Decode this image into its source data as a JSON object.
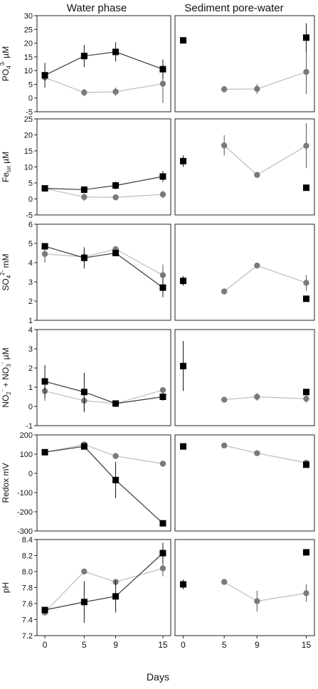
{
  "column_titles": [
    "Water phase",
    "Sediment pore-water"
  ],
  "x_axis": {
    "label": "Days",
    "ticks": [
      0,
      5,
      9,
      15
    ],
    "xlim": [
      -1,
      16
    ]
  },
  "chart_data": [
    {
      "type": "scatter",
      "ylabel": {
        "base": "PO",
        "sub": "4",
        "sup": "3-",
        "tail": " µM"
      },
      "ylim": [
        -5,
        30
      ],
      "yticks": [
        -5,
        0,
        5,
        10,
        15,
        20,
        25,
        30
      ],
      "panels": [
        {
          "column": "Water phase",
          "x": [
            0,
            5,
            9,
            15
          ],
          "series": [
            {
              "marker": "circle",
              "values": [
                7.5,
                2.0,
                2.3,
                5.2
              ],
              "err": [
                0.8,
                1.3,
                1.5,
                7.0
              ]
            },
            {
              "marker": "square",
              "values": [
                8.3,
                15.3,
                16.8,
                10.5
              ],
              "err": [
                4.5,
                4.0,
                3.5,
                3.5
              ]
            }
          ]
        },
        {
          "column": "Sediment pore-water",
          "series": [
            {
              "marker": "circle",
              "x": [
                5,
                9,
                15
              ],
              "values": [
                3.2,
                3.3,
                9.5
              ],
              "err": [
                1.2,
                1.8,
                8.0
              ]
            },
            {
              "marker": "square",
              "x": [
                0,
                15
              ],
              "values": [
                21.0,
                22.0
              ],
              "err": [
                0.8,
                5.2
              ]
            }
          ]
        }
      ]
    },
    {
      "type": "scatter",
      "ylabel": {
        "base": "Fe",
        "sub": "tot",
        "sup": "",
        "tail": " µM"
      },
      "ylim": [
        -5,
        25
      ],
      "yticks": [
        -5,
        0,
        5,
        10,
        15,
        20,
        25
      ],
      "panels": [
        {
          "column": "Water phase",
          "x": [
            0,
            5,
            9,
            15
          ],
          "series": [
            {
              "marker": "circle",
              "values": [
                3.3,
                0.6,
                0.5,
                1.4
              ],
              "err": [
                0.5,
                1.2,
                0.5,
                1.2
              ]
            },
            {
              "marker": "square",
              "values": [
                3.3,
                2.9,
                4.2,
                7.0
              ],
              "err": [
                0.5,
                0.4,
                1.2,
                1.7
              ]
            }
          ]
        },
        {
          "column": "Sediment pore-water",
          "series": [
            {
              "marker": "circle",
              "x": [
                5,
                9,
                15
              ],
              "values": [
                16.7,
                7.5,
                16.6
              ],
              "err": [
                3.2,
                0.4,
                7.0
              ]
            },
            {
              "marker": "square",
              "x": [
                0,
                15
              ],
              "values": [
                11.8,
                3.5
              ],
              "err": [
                1.8,
                0.4
              ]
            }
          ]
        }
      ]
    },
    {
      "type": "scatter",
      "ylabel": {
        "base": "SO",
        "sub": "4",
        "sup": "2-",
        "tail": " mM"
      },
      "ylim": [
        1,
        6
      ],
      "yticks": [
        1,
        2,
        3,
        4,
        5,
        6
      ],
      "panels": [
        {
          "column": "Water phase",
          "x": [
            0,
            5,
            9,
            15
          ],
          "series": [
            {
              "marker": "circle",
              "values": [
                4.45,
                4.3,
                4.7,
                3.35
              ],
              "err": [
                0.45,
                0.3,
                0.1,
                0.55
              ]
            },
            {
              "marker": "square",
              "values": [
                4.85,
                4.25,
                4.5,
                2.7
              ],
              "err": [
                0.15,
                0.55,
                0.1,
                0.5
              ]
            }
          ]
        },
        {
          "column": "Sediment pore-water",
          "series": [
            {
              "marker": "circle",
              "x": [
                5,
                9,
                15
              ],
              "values": [
                2.5,
                3.85,
                2.95
              ],
              "err": [
                0.15,
                0.08,
                0.4
              ]
            },
            {
              "marker": "square",
              "x": [
                0,
                15
              ],
              "values": [
                3.05,
                2.12
              ],
              "err": [
                0.25,
                0.05
              ]
            }
          ]
        }
      ]
    },
    {
      "type": "scatter",
      "ylabel": {
        "base": "NO",
        "sub": "2",
        "sup": "-",
        "tail": " + NO",
        "sub2": "3",
        "sup2": "-",
        "tail2": " µM"
      },
      "ylim": [
        -1,
        4
      ],
      "yticks": [
        -1,
        0,
        1,
        2,
        3,
        4
      ],
      "panels": [
        {
          "column": "Water phase",
          "x": [
            0,
            5,
            9,
            15
          ],
          "series": [
            {
              "marker": "circle",
              "values": [
                0.8,
                0.3,
                0.15,
                0.85
              ],
              "err": [
                0.5,
                0.6,
                0.05,
                0.15
              ]
            },
            {
              "marker": "square",
              "values": [
                1.3,
                0.75,
                0.15,
                0.5
              ],
              "err": [
                0.85,
                1.0,
                0.05,
                0.2
              ]
            }
          ]
        },
        {
          "column": "Sediment pore-water",
          "series": [
            {
              "marker": "circle",
              "x": [
                5,
                9,
                15
              ],
              "values": [
                0.35,
                0.5,
                0.4
              ],
              "err": [
                0.05,
                0.2,
                0.2
              ]
            },
            {
              "marker": "square",
              "x": [
                0,
                15
              ],
              "values": [
                2.1,
                0.75
              ],
              "err": [
                1.3,
                0.05
              ]
            }
          ]
        }
      ]
    },
    {
      "type": "scatter",
      "ylabel": {
        "base": "Redox mV",
        "sub": "",
        "sup": "",
        "tail": ""
      },
      "ylim": [
        -300,
        200
      ],
      "yticks": [
        -300,
        -200,
        -100,
        0,
        100,
        200
      ],
      "panels": [
        {
          "column": "Water phase",
          "x": [
            0,
            5,
            9,
            15
          ],
          "series": [
            {
              "marker": "circle",
              "values": [
                110,
                150,
                90,
                50
              ],
              "err": [
                5,
                5,
                5,
                5
              ]
            },
            {
              "marker": "square",
              "values": [
                110,
                140,
                -35,
                -260
              ],
              "err": [
                5,
                10,
                95,
                15
              ]
            }
          ]
        },
        {
          "column": "Sediment pore-water",
          "series": [
            {
              "marker": "circle",
              "x": [
                5,
                9,
                15
              ],
              "values": [
                145,
                105,
                55
              ],
              "err": [
                5,
                5,
                10
              ]
            },
            {
              "marker": "square",
              "x": [
                0,
                15
              ],
              "values": [
                140,
                45
              ],
              "err": [
                5,
                15
              ]
            }
          ]
        }
      ]
    },
    {
      "type": "scatter",
      "ylabel": {
        "base": "pH",
        "sub": "",
        "sup": "",
        "tail": ""
      },
      "ylim": [
        7.2,
        8.4
      ],
      "yticks": [
        7.2,
        7.4,
        7.6,
        7.8,
        8.0,
        8.2,
        8.4
      ],
      "decimals": 1,
      "panels": [
        {
          "column": "Water phase",
          "x": [
            0,
            5,
            9,
            15
          ],
          "series": [
            {
              "marker": "circle",
              "values": [
                7.49,
                8.0,
                7.87,
                8.04
              ],
              "err": [
                0.03,
                0.02,
                0.03,
                0.1
              ]
            },
            {
              "marker": "square",
              "values": [
                7.52,
                7.62,
                7.69,
                8.23
              ],
              "err": [
                0.03,
                0.26,
                0.2,
                0.13
              ]
            }
          ]
        },
        {
          "column": "Sediment pore-water",
          "series": [
            {
              "marker": "circle",
              "x": [
                5,
                9,
                15
              ],
              "values": [
                7.87,
                7.63,
                7.73
              ],
              "err": [
                0.02,
                0.13,
                0.11
              ]
            },
            {
              "marker": "square",
              "x": [
                0,
                15
              ],
              "values": [
                7.84,
                8.24
              ],
              "err": [
                0.06,
                0.02
              ]
            }
          ]
        }
      ]
    }
  ],
  "colors": {
    "circle": "#7a7a7a",
    "circle_line": "#bdbdbd",
    "square": "#000000",
    "square_line": "#3a3a3a",
    "axis": "#222222"
  }
}
